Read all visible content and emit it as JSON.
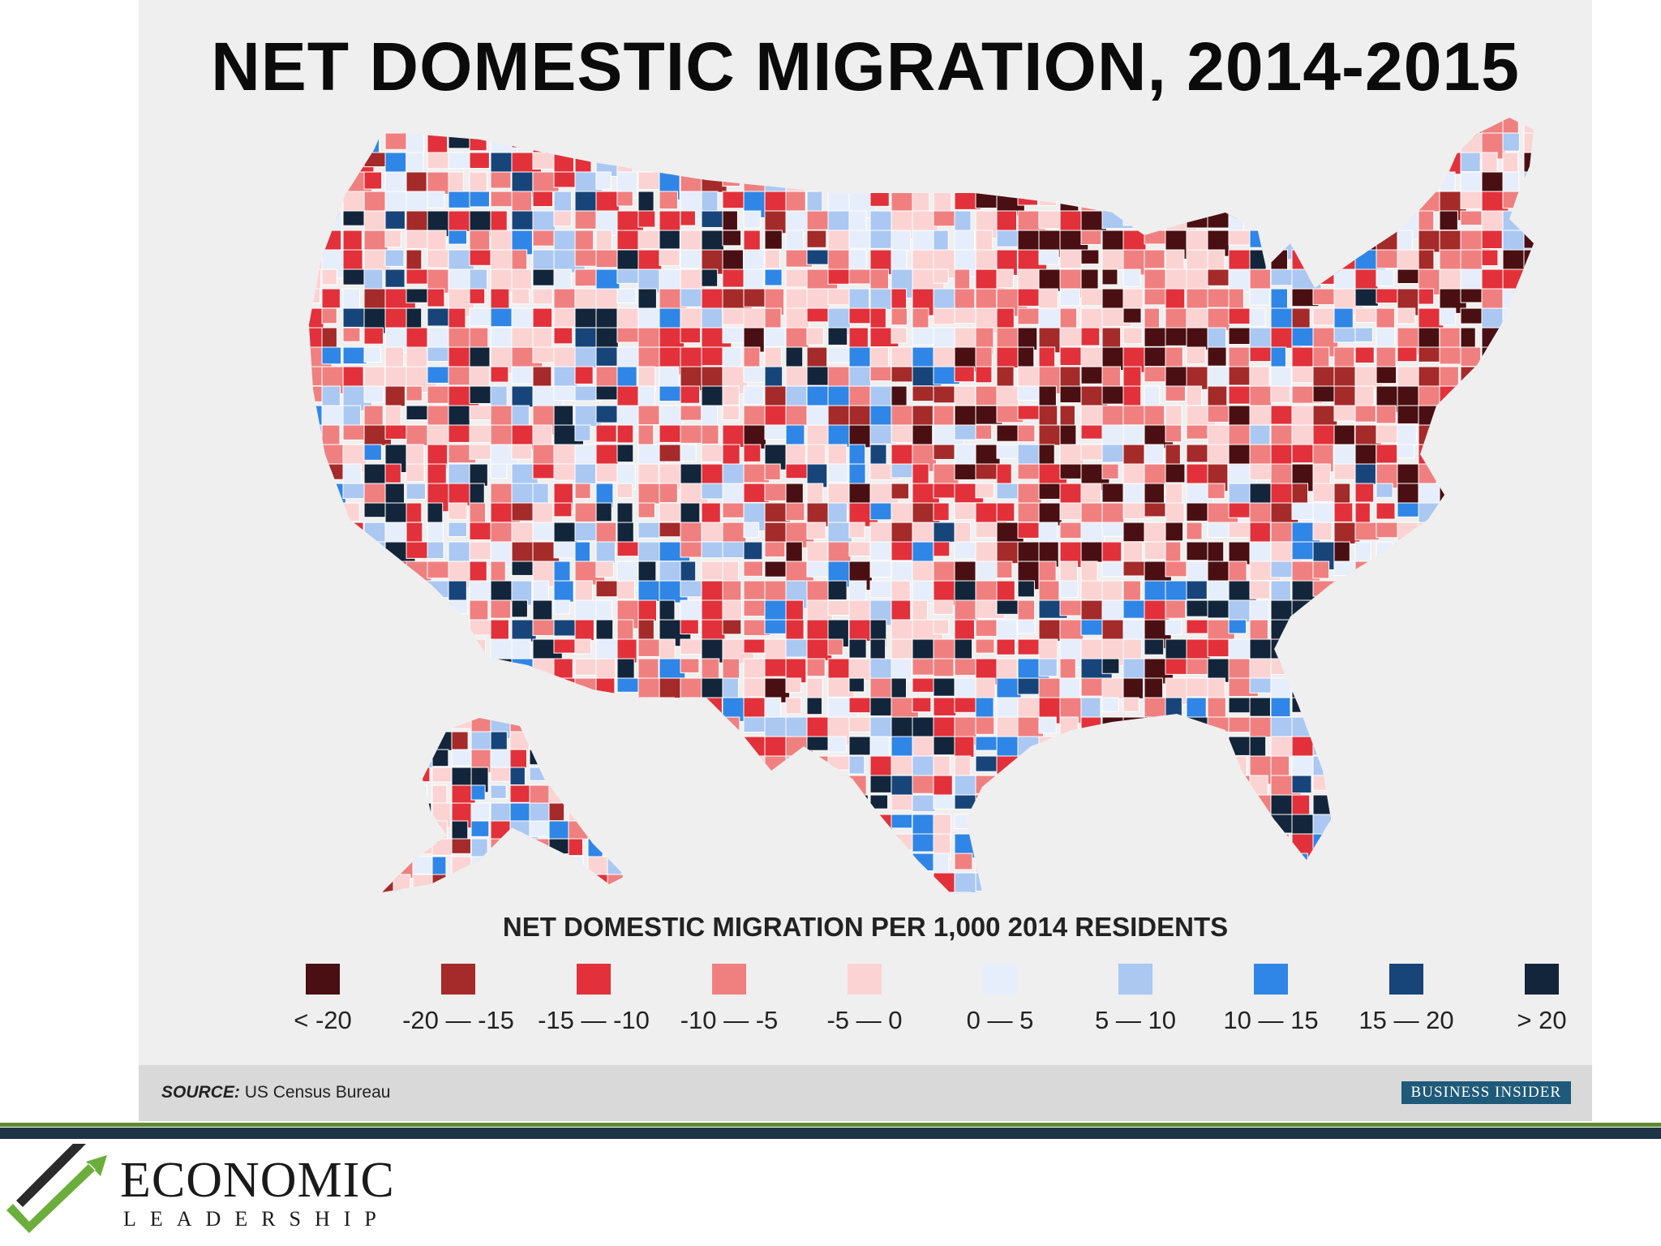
{
  "title": "NET DOMESTIC MIGRATION, 2014-2015",
  "legend": {
    "title": "NET DOMESTIC MIGRATION PER 1,000 2014 RESIDENTS",
    "items": [
      {
        "label": "< -20",
        "color": "#4a0f12"
      },
      {
        "label": "-20 — -15",
        "color": "#a52a2a"
      },
      {
        "label": "-15 — -10",
        "color": "#e2313a"
      },
      {
        "label": "-10 — -5",
        "color": "#f08080"
      },
      {
        "label": "-5 — 0",
        "color": "#fcd3d3"
      },
      {
        "label": "0 — 5",
        "color": "#e6eefb"
      },
      {
        "label": "5 — 10",
        "color": "#aac8f2"
      },
      {
        "label": "10 — 15",
        "color": "#2f86e6"
      },
      {
        "label": "15 — 20",
        "color": "#17457a"
      },
      {
        "label": "> 20",
        "color": "#13253a"
      }
    ]
  },
  "source": {
    "prefix": "SOURCE:",
    "text": "US Census Bureau"
  },
  "brand": "BUSINESS INSIDER",
  "logo": {
    "word": "ECONOMIC",
    "sub": "LEADERSHIP",
    "colors": {
      "dark": "#2b2b2b",
      "green": "#6bae3c"
    }
  },
  "colors": {
    "panel": "#efefef",
    "source_bar": "#d9d9d9",
    "footer_green": "#5b8c2a",
    "footer_navy": "#1d3346"
  }
}
